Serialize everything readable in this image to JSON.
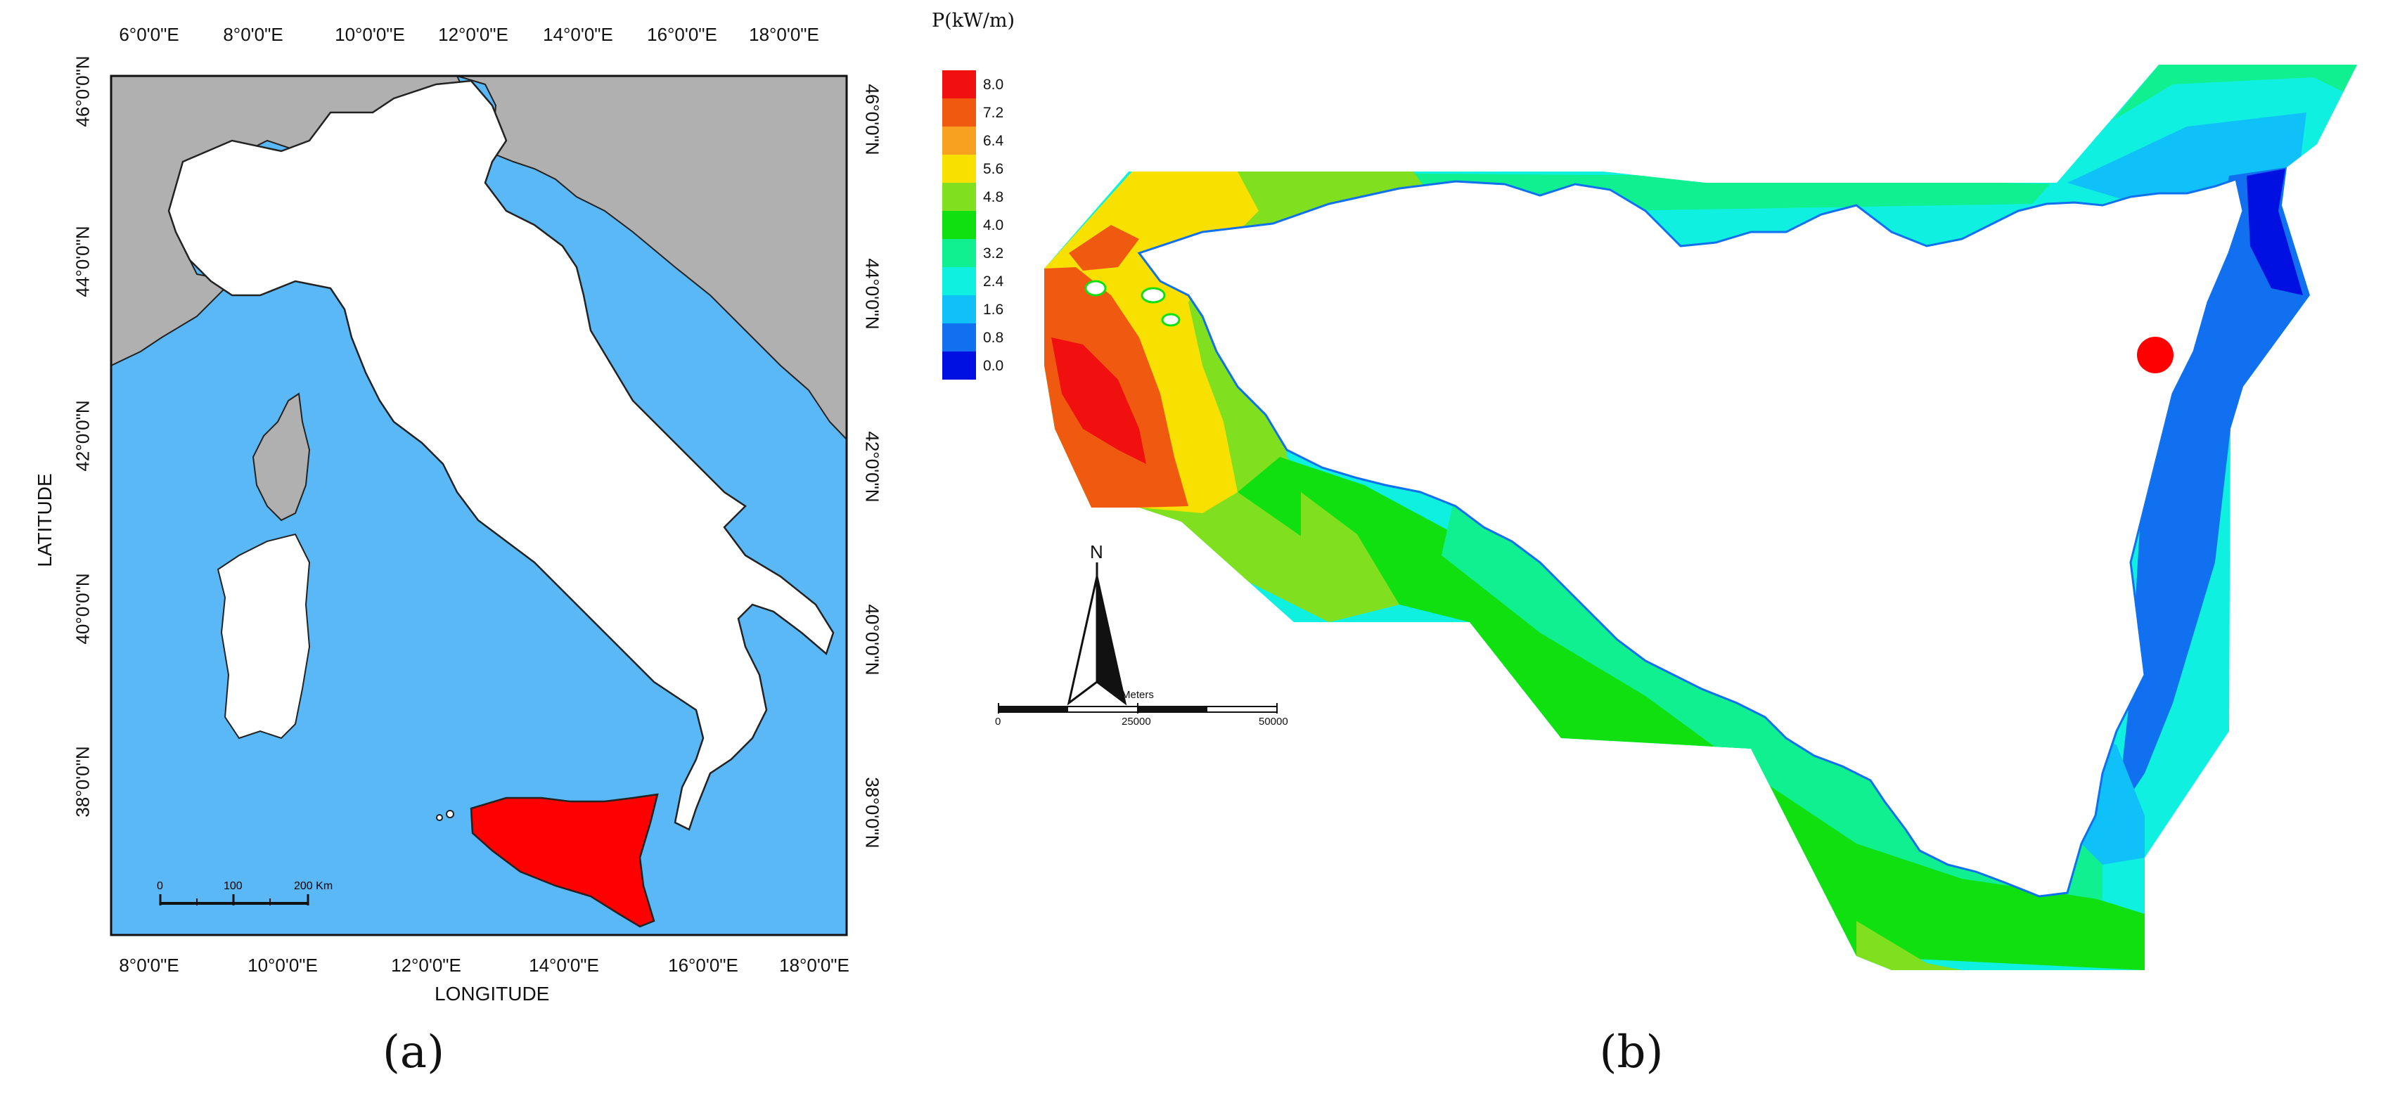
{
  "panel_a": {
    "label": "(a)",
    "axis_x_title": "LONGITUDE",
    "axis_y_title": "LATITUDE",
    "top_ticks": [
      "6°0'0\"E",
      "8°0'0\"E",
      "10°0'0\"E",
      "12°0'0\"E",
      "14°0'0\"E",
      "16°0'0\"E",
      "18°0'0\"E"
    ],
    "bottom_ticks": [
      "8°0'0\"E",
      "10°0'0\"E",
      "12°0'0\"E",
      "14°0'0\"E",
      "16°0'0\"E",
      "18°0'0\"E"
    ],
    "left_ticks": [
      "46°0'0\"N",
      "44°0'0\"N",
      "42°0'0\"N",
      "40°0'0\"N",
      "38°0'0\"N"
    ],
    "right_ticks": [
      "46°0'0\"N",
      "44°0'0\"N",
      "42°0'0\"N",
      "40°0'0\"N",
      "38°0'0\"N"
    ],
    "scale_bar": {
      "labels": [
        "0",
        "100",
        "200 Km"
      ]
    },
    "colors": {
      "sea": "#5ab8f7",
      "land_other": "#b0b0b0",
      "italy": "#ffffff",
      "sicily": "#ff0000"
    }
  },
  "panel_b": {
    "label": "(b)",
    "legend": {
      "title": "P(kW/m)",
      "entries": [
        {
          "label": "8.0",
          "color": "#f01010"
        },
        {
          "label": "7.2",
          "color": "#f05a10"
        },
        {
          "label": "6.4",
          "color": "#f8a020"
        },
        {
          "label": "5.6",
          "color": "#f8e000"
        },
        {
          "label": "4.8",
          "color": "#80e020"
        },
        {
          "label": "4.0",
          "color": "#10e010"
        },
        {
          "label": "3.2",
          "color": "#10f090"
        },
        {
          "label": "2.4",
          "color": "#10f0e0"
        },
        {
          "label": "1.6",
          "color": "#10c0f8"
        },
        {
          "label": "0.8",
          "color": "#1070f0"
        },
        {
          "label": "0.0",
          "color": "#0010e0"
        }
      ]
    },
    "north_label": "N",
    "scale_bar": {
      "unit": "Meters",
      "labels": [
        "0",
        "25000",
        "50000"
      ]
    },
    "marker_color": "#ff0000"
  }
}
